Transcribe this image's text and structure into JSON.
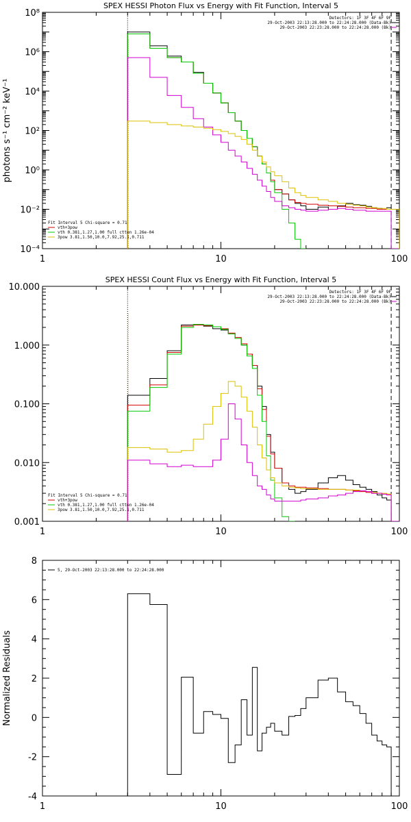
{
  "colors": {
    "black": "#000000",
    "red": "#d40000",
    "green": "#00c800",
    "yellow": "#dcc000",
    "magenta": "#d000d0",
    "orange": "#ff8c00"
  },
  "chart_data": [
    {
      "type": "line",
      "title": "SPEX HESSI Photon Flux vs Energy with Fit Function, Interval 5",
      "xlabel": "",
      "ylabel": "photons s⁻¹ cm⁻² keV⁻¹",
      "xscale": "log",
      "yscale": "log",
      "xlim": [
        1,
        100
      ],
      "ylim": [
        0.0001,
        100000000
      ],
      "xticks": [
        "1",
        "10",
        "100"
      ],
      "yticks": [
        "10⁻⁴",
        "10⁻²",
        "10⁰",
        "10²",
        "10⁴",
        "10⁶",
        "10⁸"
      ],
      "vlines": [
        {
          "x": 3,
          "style": "dotted"
        },
        {
          "x": 90,
          "style": "dashed"
        }
      ],
      "legend_right": [
        "Detectors: 1F 3F 4F 6F 9F",
        "29-Oct-2003 22:13:28.000 to 22:24:28.000 (Data-Bk)",
        "29-Oct-2003 22:23:28.000 to 22:24:28.000 (Bk)"
      ],
      "legend_left": [
        "Fit Interval 5   Chi-square = 0.71",
        "vth+3pow",
        "vth 0.381,1.27,1.00  full ctten 1.26e-04",
        "3pow 3.81,1.50,10.0,7.92,25.1,0.711"
      ],
      "edges": [
        3,
        4,
        5,
        6,
        7,
        8,
        9,
        10,
        11,
        12,
        13,
        14,
        15,
        16,
        17,
        18,
        19,
        20,
        22,
        24,
        26,
        28,
        30,
        35,
        40,
        45,
        50,
        55,
        60,
        65,
        70,
        75,
        80,
        85,
        90,
        100
      ],
      "series": [
        {
          "color": "black",
          "values": [
            10000000,
            2000000,
            600000,
            300000,
            90000,
            25000,
            8000,
            2500,
            800,
            300,
            100,
            40,
            15,
            5,
            2,
            0.7,
            0.3,
            0.1,
            0.06,
            0.03,
            0.02,
            0.015,
            0.01,
            0.013,
            0.01,
            0.015,
            0.02,
            0.017,
            0.016,
            0.014,
            0.012,
            0.011,
            0.01,
            0.012,
            0.01
          ]
        },
        {
          "color": "red",
          "values": [
            8000000,
            1500000,
            500000,
            300000,
            80000,
            25000,
            8000,
            2500,
            800,
            300,
            100,
            40,
            15,
            5,
            2,
            0.7,
            0.3,
            0.1,
            0.06,
            0.03,
            0.022,
            0.02,
            0.018,
            0.016,
            0.015,
            0.014,
            0.013,
            0.012,
            0.012,
            0.011,
            0.011,
            0.01,
            0.01,
            0.01,
            0.01
          ]
        },
        {
          "color": "green",
          "values": [
            8000000,
            1500000,
            500000,
            300000,
            80000,
            25000,
            8000,
            2500,
            800,
            300,
            100,
            40,
            15,
            5,
            2,
            0.7,
            0.25,
            0.07,
            0.01,
            0.002,
            0.0003,
            5e-05
          ]
        },
        {
          "color": "magenta",
          "values": [
            500000,
            50000,
            6000,
            1500,
            400,
            150,
            60,
            25,
            10,
            5,
            2.5,
            1.2,
            0.6,
            0.3,
            0.15,
            0.08,
            0.04,
            0.025,
            0.015,
            0.012,
            0.01,
            0.009,
            0.008,
            0.009,
            0.01,
            0.011,
            0.01,
            0.009,
            0.009,
            0.008,
            0.008,
            0.008,
            0.008,
            0.008,
            1e-05
          ]
        },
        {
          "color": "yellow",
          "values": [
            300,
            250,
            200,
            170,
            150,
            130,
            110,
            90,
            70,
            50,
            35,
            20,
            10,
            5,
            2.5,
            1.4,
            0.8,
            0.5,
            0.25,
            0.12,
            0.07,
            0.05,
            0.04,
            0.03,
            0.025,
            0.02,
            0.018,
            0.016,
            0.015,
            0.013,
            0.012,
            0.011,
            0.011,
            0.01,
            0.01
          ]
        }
      ]
    },
    {
      "type": "line",
      "title": "SPEX HESSI Count Flux vs Energy with Fit Function, Interval 5",
      "xlabel": "",
      "ylabel": "",
      "xscale": "log",
      "yscale": "log",
      "xlim": [
        1,
        100
      ],
      "ylim": [
        0.001,
        10
      ],
      "xticks": [
        "1",
        "10",
        "100"
      ],
      "yticks": [
        "0.001",
        "0.010",
        "0.100",
        "1.000",
        "10.000"
      ],
      "vlines": [
        {
          "x": 3,
          "style": "dotted"
        },
        {
          "x": 90,
          "style": "dashed"
        }
      ],
      "legend_right": [
        "Detectors: 1F 3F 4F 6F 9F",
        "29-Oct-2003 22:13:28.000 to 22:24:28.000 (Data-Bk)",
        "29-Oct-2003 22:23:28.000 to 22:24:28.000 (Bk)"
      ],
      "legend_left": [
        "Fit Interval 5   Chi-square = 0.71",
        "vth+3pow",
        "vth 0.381,1.27,1.00  full ctten 1.26e-04",
        "3pow 3.81,1.50,10.0,7.92,25.1,0.711"
      ],
      "edges": [
        3,
        4,
        5,
        6,
        7,
        8,
        9,
        10,
        11,
        12,
        13,
        14,
        15,
        16,
        17,
        18,
        19,
        20,
        22,
        24,
        26,
        28,
        30,
        35,
        40,
        45,
        50,
        55,
        60,
        65,
        70,
        75,
        80,
        85,
        90,
        100
      ],
      "series": [
        {
          "color": "black",
          "values": [
            0.14,
            0.27,
            0.8,
            2.2,
            2.2,
            2.1,
            1.9,
            1.8,
            1.55,
            1.3,
            1.0,
            0.7,
            0.45,
            0.2,
            0.09,
            0.03,
            0.015,
            0.008,
            0.0045,
            0.0035,
            0.003,
            0.0032,
            0.0035,
            0.0045,
            0.0055,
            0.006,
            0.005,
            0.0042,
            0.0038,
            0.0035,
            0.0032,
            0.0028,
            0.0025,
            0.0023,
            0.0001
          ]
        },
        {
          "color": "red",
          "values": [
            0.095,
            0.21,
            0.75,
            2.1,
            2.2,
            2.15,
            2.05,
            1.9,
            1.6,
            1.35,
            1.05,
            0.7,
            0.45,
            0.18,
            0.08,
            0.028,
            0.014,
            0.008,
            0.0045,
            0.004,
            0.0038,
            0.0038,
            0.0037,
            0.0036,
            0.0035,
            0.0035,
            0.0034,
            0.0033,
            0.0032,
            0.0031,
            0.003,
            0.003,
            0.0029,
            0.0029,
            0.0001
          ]
        },
        {
          "color": "green",
          "values": [
            0.075,
            0.19,
            0.7,
            2.0,
            2.25,
            2.2,
            2.05,
            1.85,
            1.55,
            1.3,
            1.0,
            0.65,
            0.4,
            0.14,
            0.05,
            0.013,
            0.005,
            0.0025,
            0.0012,
            0.0005
          ]
        },
        {
          "color": "yellow",
          "values": [
            0.018,
            0.017,
            0.015,
            0.016,
            0.025,
            0.045,
            0.09,
            0.15,
            0.24,
            0.2,
            0.13,
            0.075,
            0.04,
            0.02,
            0.012,
            0.0075,
            0.0055,
            0.0045,
            0.004,
            0.0038,
            0.0037,
            0.0036,
            0.0036,
            0.0035,
            0.0035,
            0.0035,
            0.0034,
            0.0034,
            0.0033,
            0.0032,
            0.0031,
            0.003,
            0.003,
            0.0029,
            0.0001
          ]
        },
        {
          "color": "magenta",
          "values": [
            0.011,
            0.0095,
            0.0085,
            0.009,
            0.0085,
            0.0085,
            0.011,
            0.025,
            0.1,
            0.055,
            0.02,
            0.01,
            0.006,
            0.004,
            0.0035,
            0.0028,
            0.0024,
            0.0022,
            0.0022,
            0.0022,
            0.0022,
            0.0023,
            0.0024,
            0.0025,
            0.0027,
            0.0028,
            0.003,
            0.0032,
            0.0033,
            0.0032,
            0.003,
            0.003,
            0.0029,
            0.0028,
            0.0001
          ]
        }
      ]
    },
    {
      "type": "line",
      "title": "",
      "xlabel": "",
      "ylabel": "Normalized Residuals",
      "xscale": "log",
      "yscale": "linear",
      "xlim": [
        1,
        100
      ],
      "ylim": [
        -4,
        8
      ],
      "xticks": [
        "1",
        "10",
        "100"
      ],
      "yticks": [
        "-4",
        "-2",
        "0",
        "2",
        "4",
        "6",
        "8"
      ],
      "legend_left": [
        "5, 29-Oct-2003 22:13:28.000 to 22:24:28.000"
      ],
      "edges": [
        3,
        4,
        5,
        6,
        7,
        8,
        9,
        10,
        11,
        12,
        13,
        14,
        15,
        16,
        17,
        18,
        19,
        20,
        22,
        24,
        26,
        28,
        30,
        35,
        40,
        45,
        50,
        55,
        60,
        65,
        70,
        75,
        80,
        85,
        90
      ],
      "series": [
        {
          "color": "black",
          "values": [
            6.3,
            5.75,
            -2.9,
            2.05,
            -0.8,
            0.3,
            0.15,
            -0.05,
            -2.3,
            -1.4,
            0.9,
            -0.9,
            2.55,
            -1.7,
            -0.8,
            -0.5,
            -0.3,
            -0.7,
            -0.9,
            0.05,
            0.1,
            0.45,
            1.0,
            1.9,
            2.0,
            1.3,
            0.8,
            0.6,
            0.2,
            -0.3,
            -0.9,
            -1.2,
            -1.4,
            -1.5
          ]
        }
      ]
    }
  ]
}
